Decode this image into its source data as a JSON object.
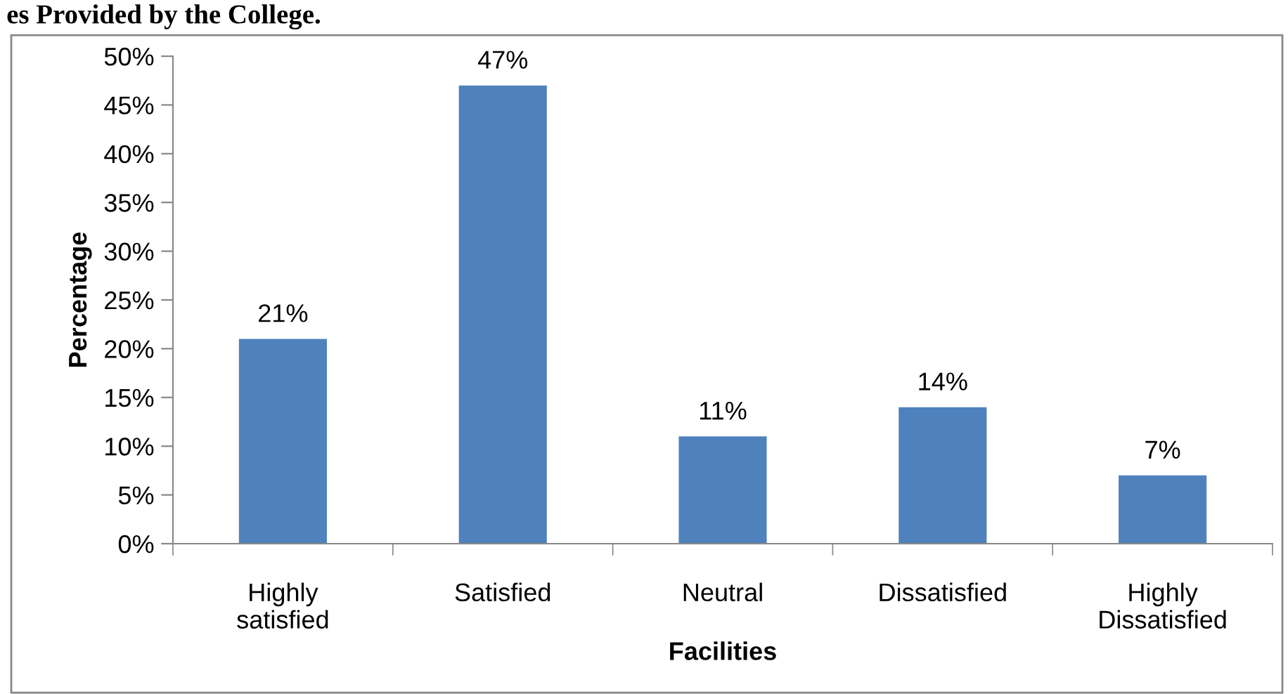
{
  "chart_data": {
    "type": "bar",
    "title": "es Provided by the College.",
    "xlabel": "Facilities",
    "ylabel": "Percentage",
    "categories": [
      "Highly\nsatisfied",
      "Satisfied",
      "Neutral",
      "Dissatisfied",
      "Highly\nDissatisfied"
    ],
    "values": [
      21,
      47,
      11,
      14,
      7
    ],
    "value_labels": [
      "21%",
      "47%",
      "11%",
      "14%",
      "7%"
    ],
    "color": "#4f81bd",
    "ylim": [
      0,
      50
    ],
    "yticks": [
      {
        "value": 0,
        "label": "0%"
      },
      {
        "value": 5,
        "label": "5%"
      },
      {
        "value": 10,
        "label": "10%"
      },
      {
        "value": 15,
        "label": "15%"
      },
      {
        "value": 20,
        "label": "20%"
      },
      {
        "value": 25,
        "label": "25%"
      },
      {
        "value": 30,
        "label": "30%"
      },
      {
        "value": 35,
        "label": "35%"
      },
      {
        "value": 40,
        "label": "40%"
      },
      {
        "value": 45,
        "label": "45%"
      },
      {
        "value": 50,
        "label": "50%"
      }
    ],
    "grid": false
  }
}
